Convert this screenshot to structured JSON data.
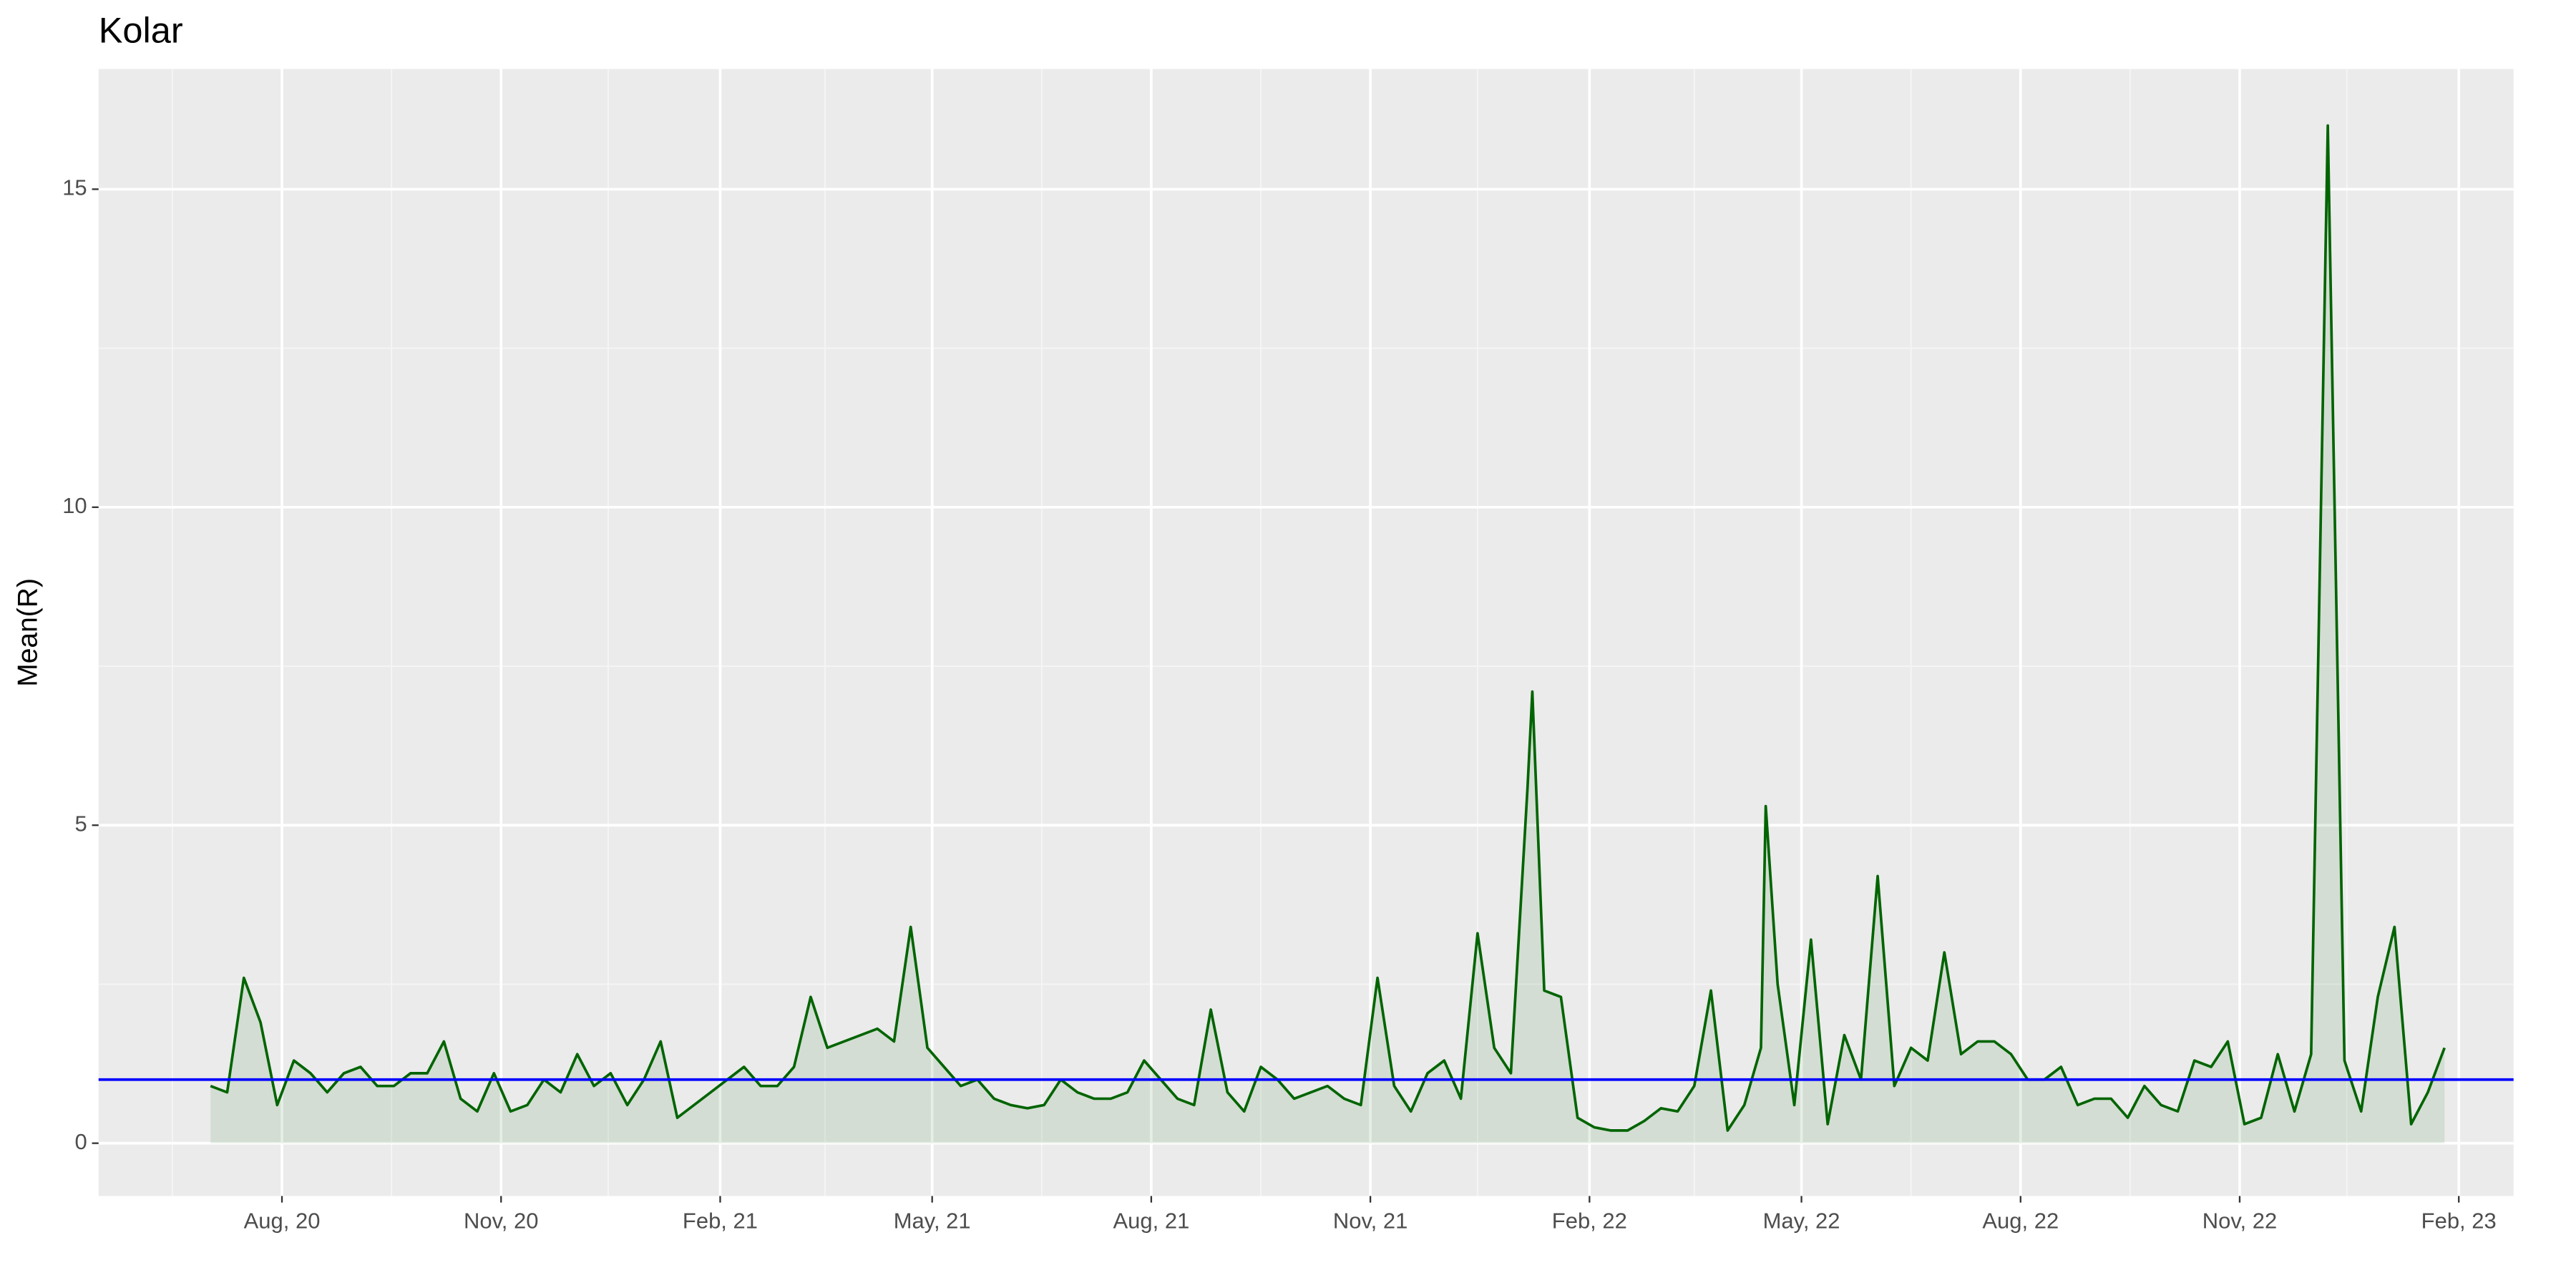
{
  "chart_data": {
    "type": "line",
    "title": "Kolar",
    "y_label": "Mean(R)",
    "xlim": [
      "2020-05-16",
      "2023-02-24"
    ],
    "ylim": [
      -0.83,
      16.89
    ],
    "xticks": [
      {
        "value": "2020-08-01",
        "label": "Aug, 20"
      },
      {
        "value": "2020-11-01",
        "label": "Nov, 20"
      },
      {
        "value": "2021-02-01",
        "label": "Feb, 21"
      },
      {
        "value": "2021-05-01",
        "label": "May, 21"
      },
      {
        "value": "2021-08-01",
        "label": "Aug, 21"
      },
      {
        "value": "2021-11-01",
        "label": "Nov, 21"
      },
      {
        "value": "2022-02-01",
        "label": "Feb, 22"
      },
      {
        "value": "2022-05-01",
        "label": "May, 22"
      },
      {
        "value": "2022-08-01",
        "label": "Aug, 22"
      },
      {
        "value": "2022-11-01",
        "label": "Nov, 22"
      },
      {
        "value": "2023-02-01",
        "label": "Feb, 23"
      }
    ],
    "xminor": [
      "2020-06-16",
      "2020-09-16",
      "2020-12-16",
      "2021-03-17",
      "2021-06-16",
      "2021-09-16",
      "2021-12-16",
      "2022-03-17",
      "2022-06-16",
      "2022-09-16",
      "2022-12-16"
    ],
    "yticks": [
      0,
      5,
      10,
      15
    ],
    "yminor": [
      2.5,
      7.5,
      12.5
    ],
    "grid": true,
    "hline": {
      "value": 1,
      "color": "#0000ff"
    },
    "series": [
      {
        "color": "#006400",
        "area": true,
        "x": [
          "2020-07-02",
          "2020-07-09",
          "2020-07-16",
          "2020-07-23",
          "2020-07-30",
          "2020-08-06",
          "2020-08-13",
          "2020-08-20",
          "2020-08-27",
          "2020-09-03",
          "2020-09-10",
          "2020-09-17",
          "2020-09-24",
          "2020-10-01",
          "2020-10-08",
          "2020-10-15",
          "2020-10-22",
          "2020-10-29",
          "2020-11-05",
          "2020-11-12",
          "2020-11-19",
          "2020-11-26",
          "2020-12-03",
          "2020-12-10",
          "2020-12-17",
          "2020-12-24",
          "2020-12-31",
          "2021-01-07",
          "2021-01-14",
          "2021-01-21",
          "2021-01-28",
          "2021-02-04",
          "2021-02-11",
          "2021-02-18",
          "2021-02-25",
          "2021-03-04",
          "2021-03-11",
          "2021-03-18",
          "2021-03-25",
          "2021-04-01",
          "2021-04-08",
          "2021-04-15",
          "2021-04-22",
          "2021-04-29",
          "2021-05-06",
          "2021-05-13",
          "2021-05-20",
          "2021-05-27",
          "2021-06-03",
          "2021-06-10",
          "2021-06-17",
          "2021-06-24",
          "2021-07-01",
          "2021-07-08",
          "2021-07-15",
          "2021-07-22",
          "2021-07-29",
          "2021-08-05",
          "2021-08-12",
          "2021-08-19",
          "2021-08-26",
          "2021-09-02",
          "2021-09-09",
          "2021-09-16",
          "2021-09-23",
          "2021-09-30",
          "2021-10-07",
          "2021-10-14",
          "2021-10-21",
          "2021-10-28",
          "2021-11-04",
          "2021-11-11",
          "2021-11-18",
          "2021-11-25",
          "2021-12-02",
          "2021-12-09",
          "2021-12-16",
          "2021-12-23",
          "2021-12-30",
          "2022-01-06",
          "2022-01-08",
          "2022-01-13",
          "2022-01-20",
          "2022-01-27",
          "2022-02-03",
          "2022-02-10",
          "2022-02-17",
          "2022-02-24",
          "2022-03-03",
          "2022-03-10",
          "2022-03-17",
          "2022-03-24",
          "2022-03-31",
          "2022-04-07",
          "2022-04-14",
          "2022-04-16",
          "2022-04-21",
          "2022-04-28",
          "2022-05-05",
          "2022-05-12",
          "2022-05-19",
          "2022-05-26",
          "2022-06-02",
          "2022-06-09",
          "2022-06-16",
          "2022-06-23",
          "2022-06-30",
          "2022-07-07",
          "2022-07-14",
          "2022-07-21",
          "2022-07-28",
          "2022-08-04",
          "2022-08-11",
          "2022-08-18",
          "2022-08-25",
          "2022-09-01",
          "2022-09-08",
          "2022-09-15",
          "2022-09-22",
          "2022-09-29",
          "2022-10-06",
          "2022-10-13",
          "2022-10-20",
          "2022-10-27",
          "2022-11-03",
          "2022-11-10",
          "2022-11-17",
          "2022-11-24",
          "2022-12-01",
          "2022-12-08",
          "2022-12-15",
          "2022-12-22",
          "2022-12-29",
          "2023-01-05",
          "2023-01-12",
          "2023-01-19",
          "2023-01-26"
        ],
        "values": [
          0.9,
          0.8,
          2.6,
          1.9,
          0.6,
          1.3,
          1.1,
          0.8,
          1.1,
          1.2,
          0.9,
          0.9,
          1.1,
          1.1,
          1.6,
          0.7,
          0.5,
          1.1,
          0.5,
          0.6,
          1.0,
          0.8,
          1.4,
          0.9,
          1.1,
          0.6,
          1.0,
          1.6,
          0.4,
          0.6,
          0.8,
          1.0,
          1.2,
          0.9,
          0.9,
          1.2,
          2.3,
          1.5,
          1.6,
          1.7,
          1.8,
          1.6,
          3.4,
          1.5,
          1.2,
          0.9,
          1.0,
          0.7,
          0.6,
          0.55,
          0.6,
          1.0,
          0.8,
          0.7,
          0.7,
          0.8,
          1.3,
          1.0,
          0.7,
          0.6,
          2.1,
          0.8,
          0.5,
          1.2,
          1.0,
          0.7,
          0.8,
          0.9,
          0.7,
          0.6,
          2.6,
          0.9,
          0.5,
          1.1,
          1.3,
          0.7,
          3.3,
          1.5,
          1.1,
          5.6,
          7.1,
          2.4,
          2.3,
          0.4,
          0.25,
          0.2,
          0.2,
          0.35,
          0.55,
          0.5,
          0.9,
          2.4,
          0.2,
          0.6,
          1.5,
          5.3,
          2.5,
          0.6,
          3.2,
          0.3,
          1.7,
          1.0,
          4.2,
          0.9,
          1.5,
          1.3,
          3.0,
          1.4,
          1.6,
          1.6,
          1.4,
          1.0,
          1.0,
          1.2,
          0.6,
          0.7,
          0.7,
          0.4,
          0.9,
          0.6,
          0.5,
          1.3,
          1.2,
          1.6,
          0.3,
          0.4,
          1.4,
          0.5,
          1.4,
          16.0,
          1.3,
          0.5,
          2.3,
          3.4,
          0.3,
          0.8,
          1.5
        ]
      }
    ]
  }
}
